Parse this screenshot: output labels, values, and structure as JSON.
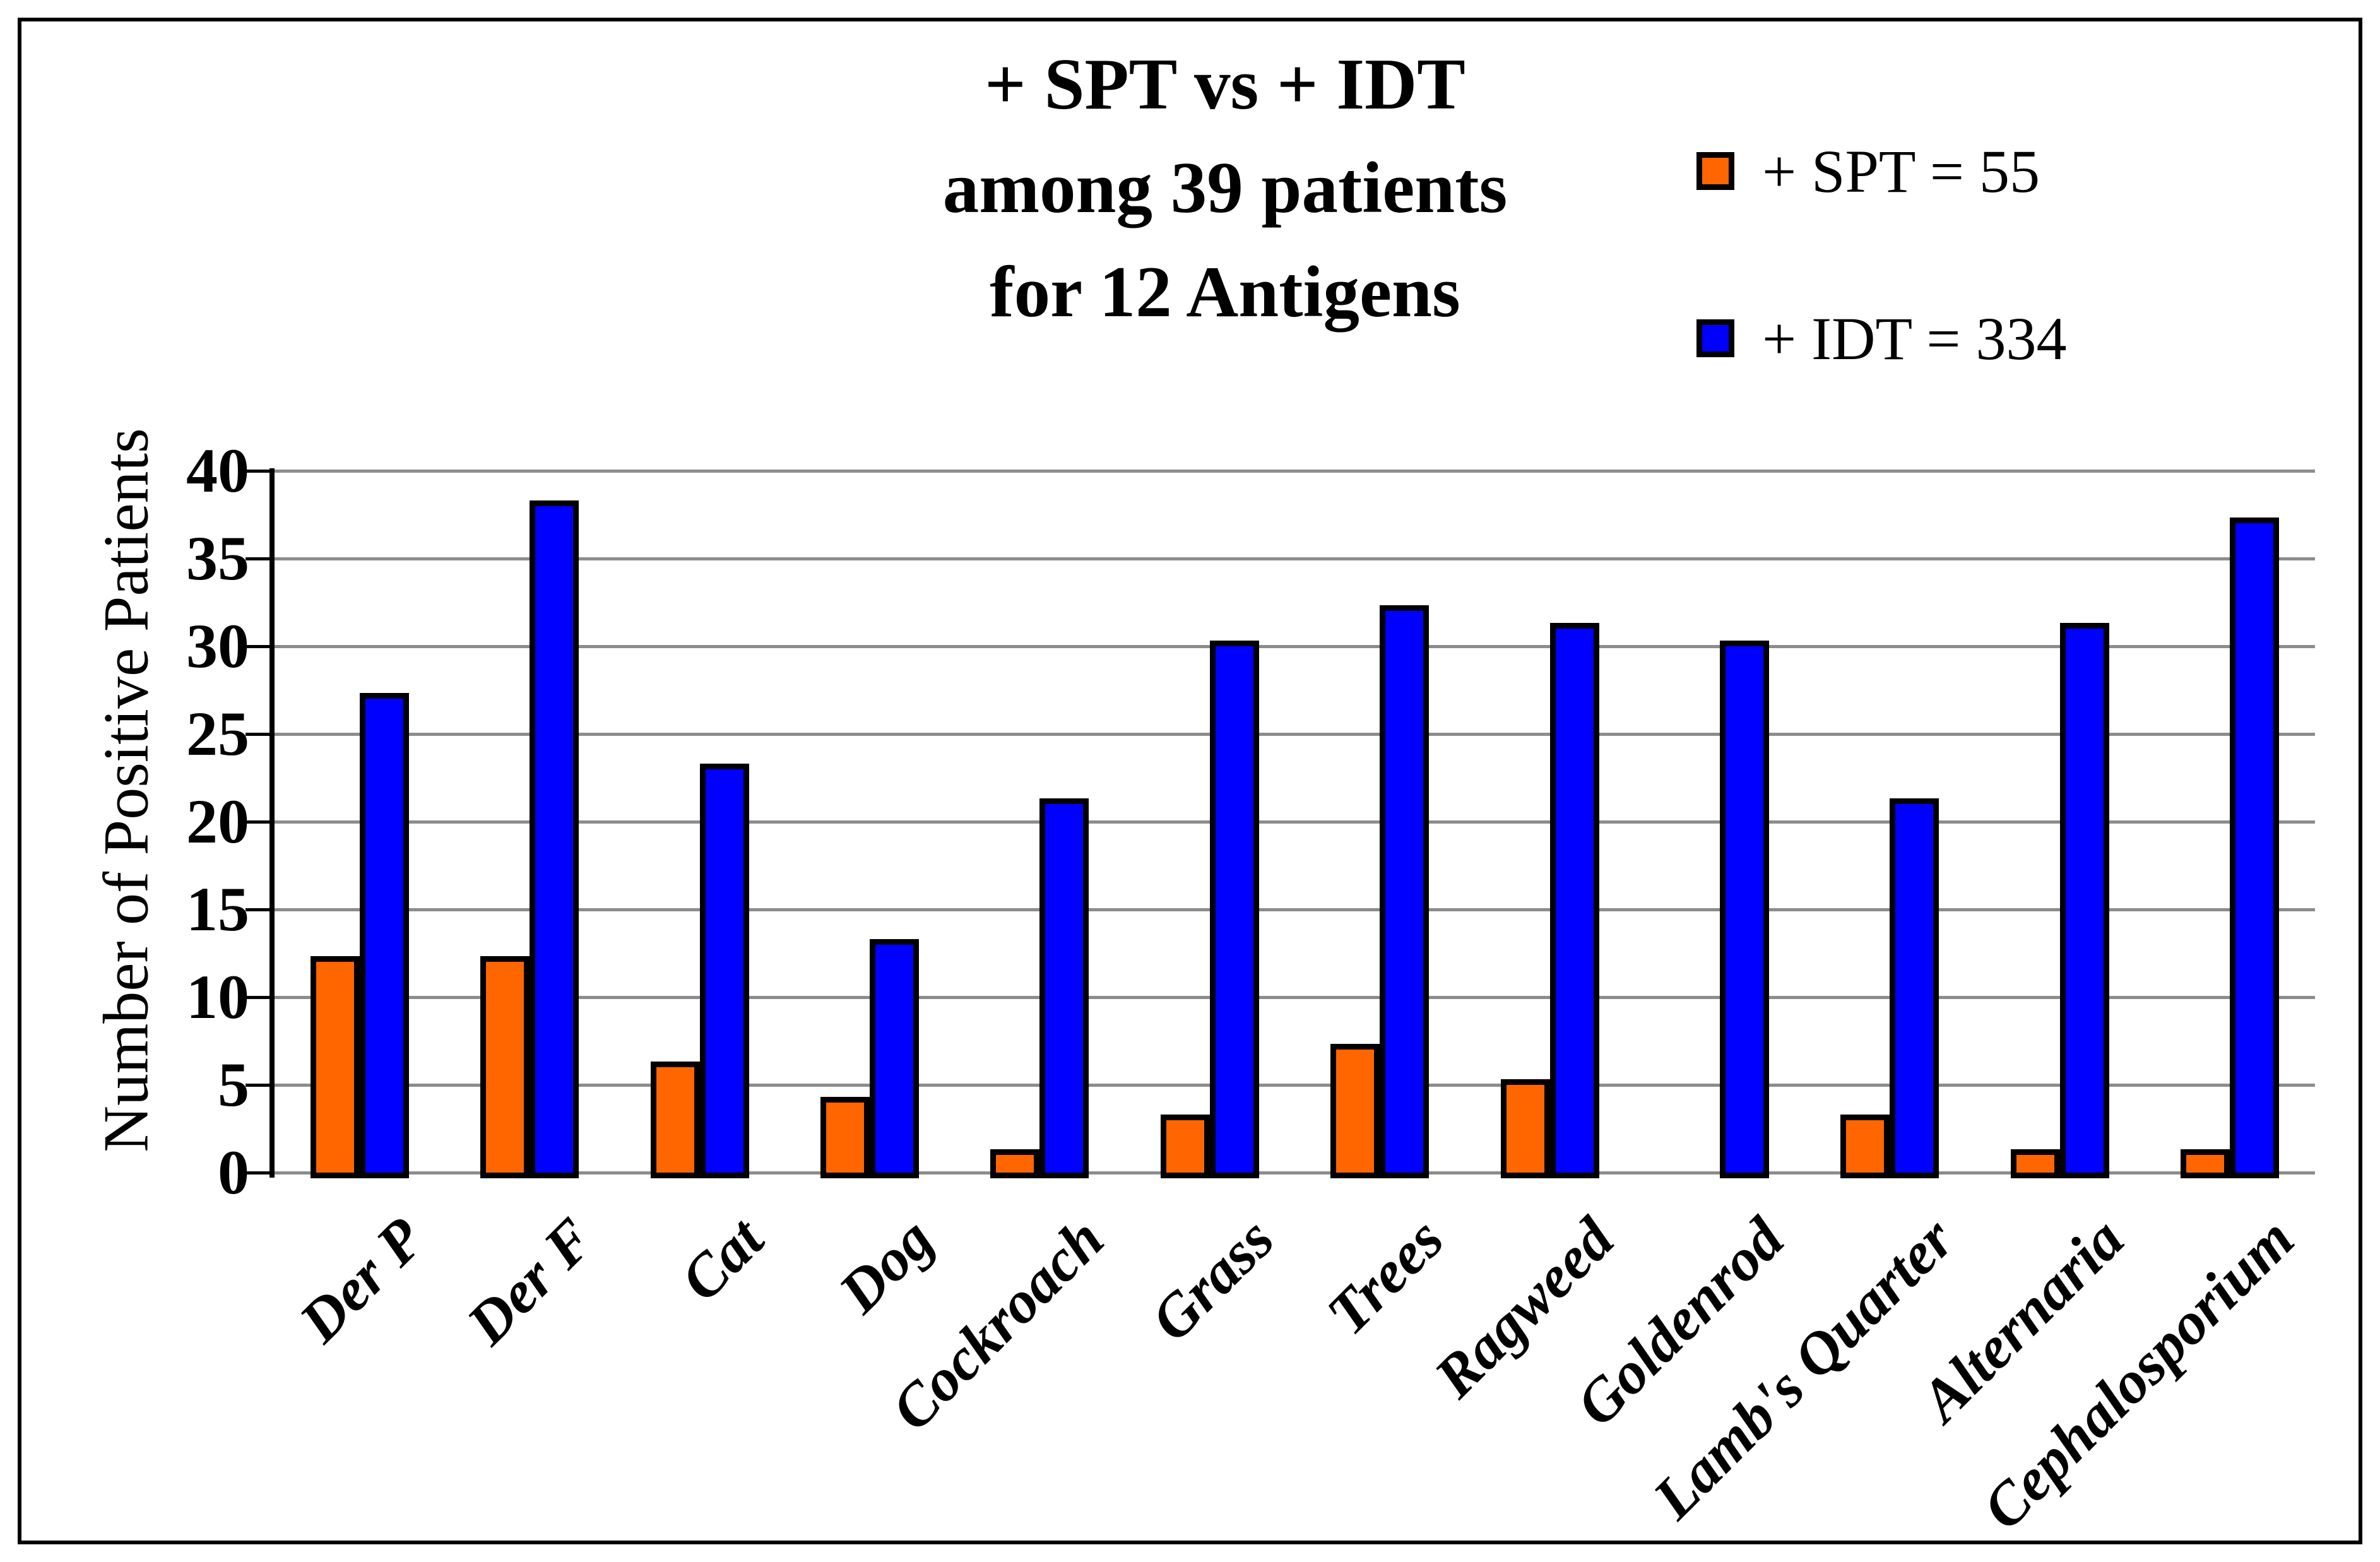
{
  "figure": {
    "title_lines": [
      "+ SPT vs + IDT",
      "among 39 patients",
      "for 12 Antigens"
    ],
    "legend": [
      {
        "label": "+ SPT = 55",
        "color": "#FF6600"
      },
      {
        "label": "+ IDT = 334",
        "color": "#0000FF"
      }
    ],
    "y_axis": {
      "label": "Number of Positive Patients",
      "ticks": [
        0,
        5,
        10,
        15,
        20,
        25,
        30,
        35,
        40
      ],
      "min": 0,
      "max": 40
    }
  },
  "chart_data": {
    "type": "bar",
    "title": "+ SPT vs + IDT among 39 patients for 12 Antigens",
    "categories": [
      "Der P",
      "Der F",
      "Cat",
      "Dog",
      "Cockroach",
      "Grass",
      "Trees",
      "Ragweed",
      "Goldenrod",
      "Lamb's Quarter",
      "Alternaria",
      "Cephalosporium"
    ],
    "series": [
      {
        "name": "+ SPT",
        "total": 55,
        "color": "#FF6600",
        "values": [
          12,
          12,
          6,
          4,
          1,
          3,
          7,
          5,
          0,
          3,
          1,
          1
        ]
      },
      {
        "name": "+ IDT",
        "total": 334,
        "color": "#0000FF",
        "values": [
          27,
          38,
          23,
          13,
          21,
          30,
          32,
          31,
          30,
          21,
          31,
          37
        ]
      }
    ],
    "xlabel": "",
    "ylabel": "Number of Positive Patients",
    "ylim": [
      0,
      40
    ],
    "ytick_step": 5,
    "grid": true,
    "legend_position": "top-right",
    "x_label_rotation_deg": 45,
    "colors": {
      "grid": "#8C8C8C",
      "bar_outline": "#000000",
      "axis": "#000000",
      "background": "#FFFFFF"
    }
  }
}
